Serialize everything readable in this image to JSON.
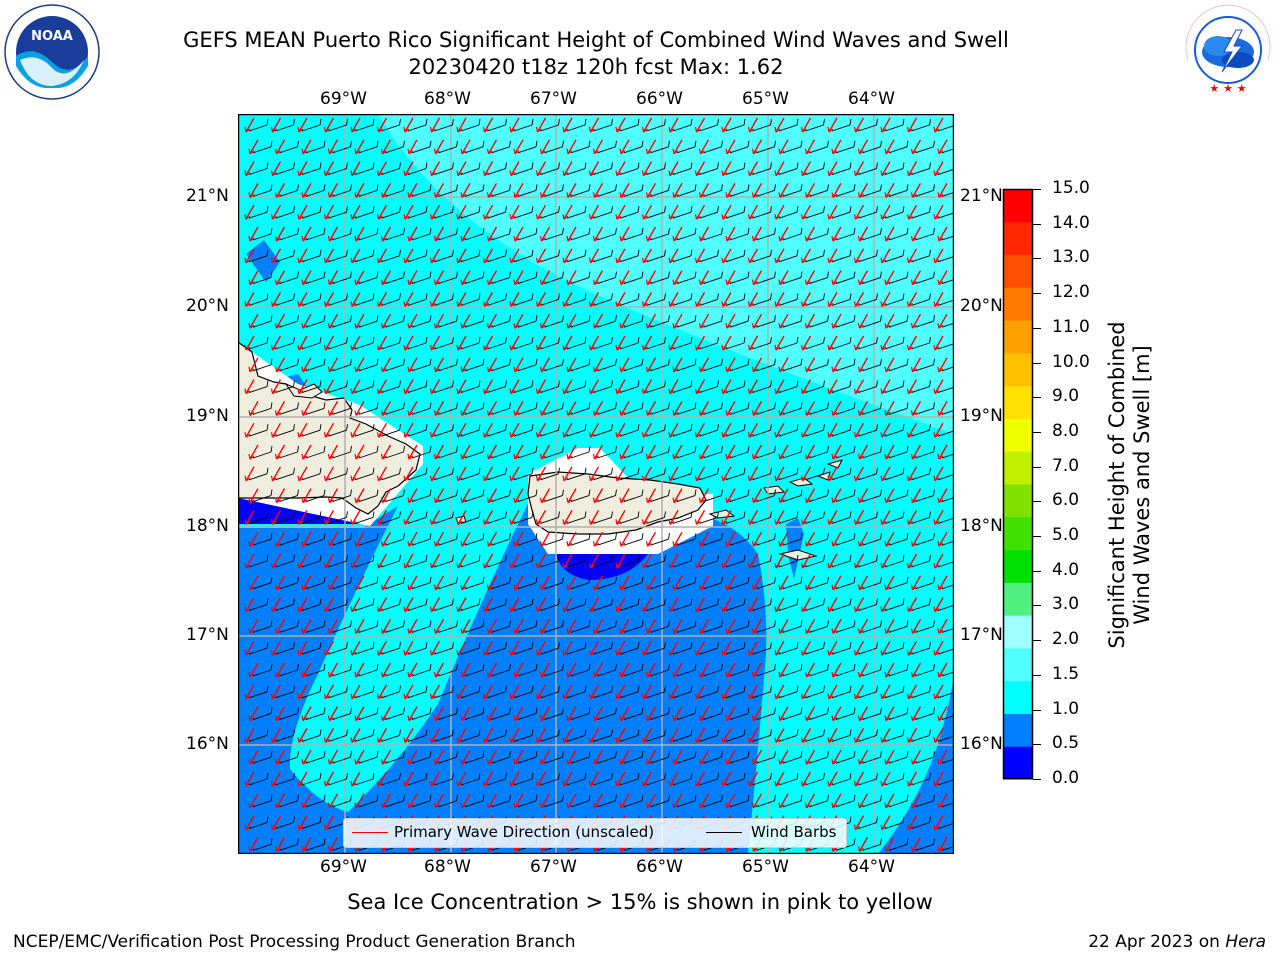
{
  "header": {
    "title_line1": "GEFS MEAN Puerto Rico Significant Height of Combined Wind Waves and Swell",
    "title_line2": "20230420 t18z 120h fcst   Max: 1.62"
  },
  "logos": {
    "left_name": "NOAA",
    "left_text": "NATIONAL OCEANIC AND ATMOSPHERIC ADMINISTRATION · U.S. DEPARTMENT OF COMMERCE",
    "right_text": "NATIONAL WEATHER SERVICE"
  },
  "map": {
    "lon_labels": [
      "69°W",
      "68°W",
      "67°W",
      "66°W",
      "65°W",
      "64°W"
    ],
    "lat_labels": [
      "21°N",
      "20°N",
      "19°N",
      "18°N",
      "17°N",
      "16°N"
    ],
    "colors": {
      "land": "#efedde",
      "level_0_05": "#0000ff",
      "level_05_1": "#0080ff",
      "level_1_15": "#00ffff",
      "level_15_2": "#50ffff",
      "wave_arrow": "#ff0000",
      "wind_barb": "#000000",
      "grid": "#b0b0b0"
    }
  },
  "legend": {
    "wave_label": "Primary Wave Direction (unscaled)",
    "barb_label": "Wind Barbs"
  },
  "colorbar": {
    "label_line1": "Significant Height of Combined",
    "label_line2": "Wind Waves and Swell [m]",
    "ticks": [
      "15.0",
      "14.0",
      "13.0",
      "12.0",
      "11.0",
      "10.0",
      "9.0",
      "8.0",
      "7.0",
      "6.0",
      "5.0",
      "4.0",
      "3.0",
      "2.0",
      "1.5",
      "1.0",
      "0.5",
      "0.0"
    ],
    "colors": [
      "#0000ff",
      "#0080ff",
      "#00ffff",
      "#50ffff",
      "#a0ffff",
      "#50f080",
      "#00e000",
      "#40e000",
      "#80e000",
      "#c0f000",
      "#f0ff00",
      "#ffe000",
      "#ffc000",
      "#ffa000",
      "#ff7800",
      "#ff5000",
      "#ff2800",
      "#ff0000"
    ]
  },
  "footer": {
    "footnote": "Sea Ice Concentration > 15% is shown in pink to yellow",
    "credit": "NCEP/EMC/Verification Post Processing Product Generation Branch",
    "date": "22 Apr 2023 on",
    "host": "Hera"
  }
}
